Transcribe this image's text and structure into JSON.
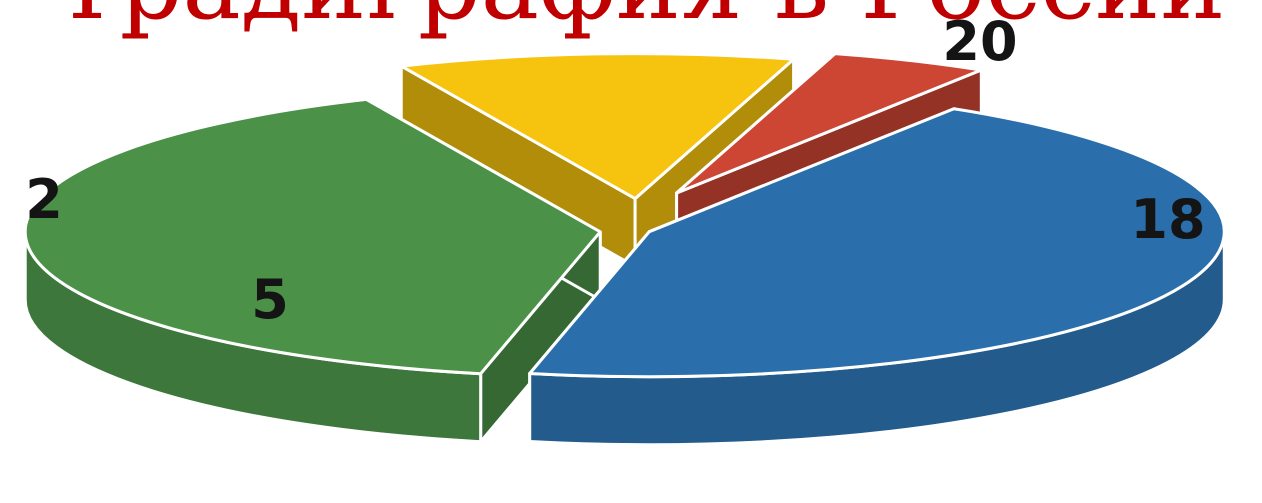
{
  "chart_data": {
    "type": "pie",
    "title": "Традиграфия в России",
    "slices": [
      {
        "value": 20,
        "label": "20",
        "color": "#2a6fab"
      },
      {
        "value": 18,
        "label": "18",
        "color": "#4b9148"
      },
      {
        "value": 5,
        "label": "5",
        "color": "#f6c40e"
      },
      {
        "value": 2,
        "label": "2",
        "color": "#cd4634"
      }
    ],
    "title_color": "#c00000",
    "exploded": true,
    "style": "3d"
  }
}
